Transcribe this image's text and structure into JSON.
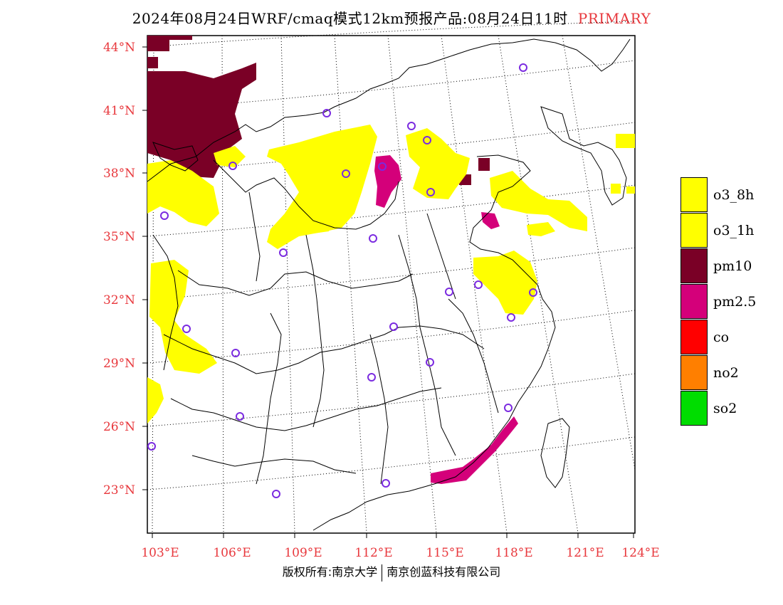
{
  "title": {
    "main": "2024年08月24日WRF/cmaq模式12km预报产品:08月24日11时",
    "tag": "PRIMARY"
  },
  "map": {
    "latitude_labels": [
      "44°N",
      "41°N",
      "38°N",
      "35°N",
      "32°N",
      "29°N",
      "26°N",
      "23°N"
    ],
    "longitude_labels": [
      "103°E",
      "106°E",
      "109°E",
      "112°E",
      "115°E",
      "118°E",
      "121°E",
      "124°E"
    ]
  },
  "legend": [
    {
      "label": "o3_8h",
      "color": "#ffff00"
    },
    {
      "label": "o3_1h",
      "color": "#ffff00"
    },
    {
      "label": "pm10",
      "color": "#7a0026"
    },
    {
      "label": "pm2.5",
      "color": "#d4007a"
    },
    {
      "label": "co",
      "color": "#ff0000"
    },
    {
      "label": "no2",
      "color": "#ff7f00"
    },
    {
      "label": "so2",
      "color": "#00dd00"
    }
  ],
  "footer": {
    "left": "版权所有:南京大学",
    "right": "南京创蓝科技有限公司"
  }
}
